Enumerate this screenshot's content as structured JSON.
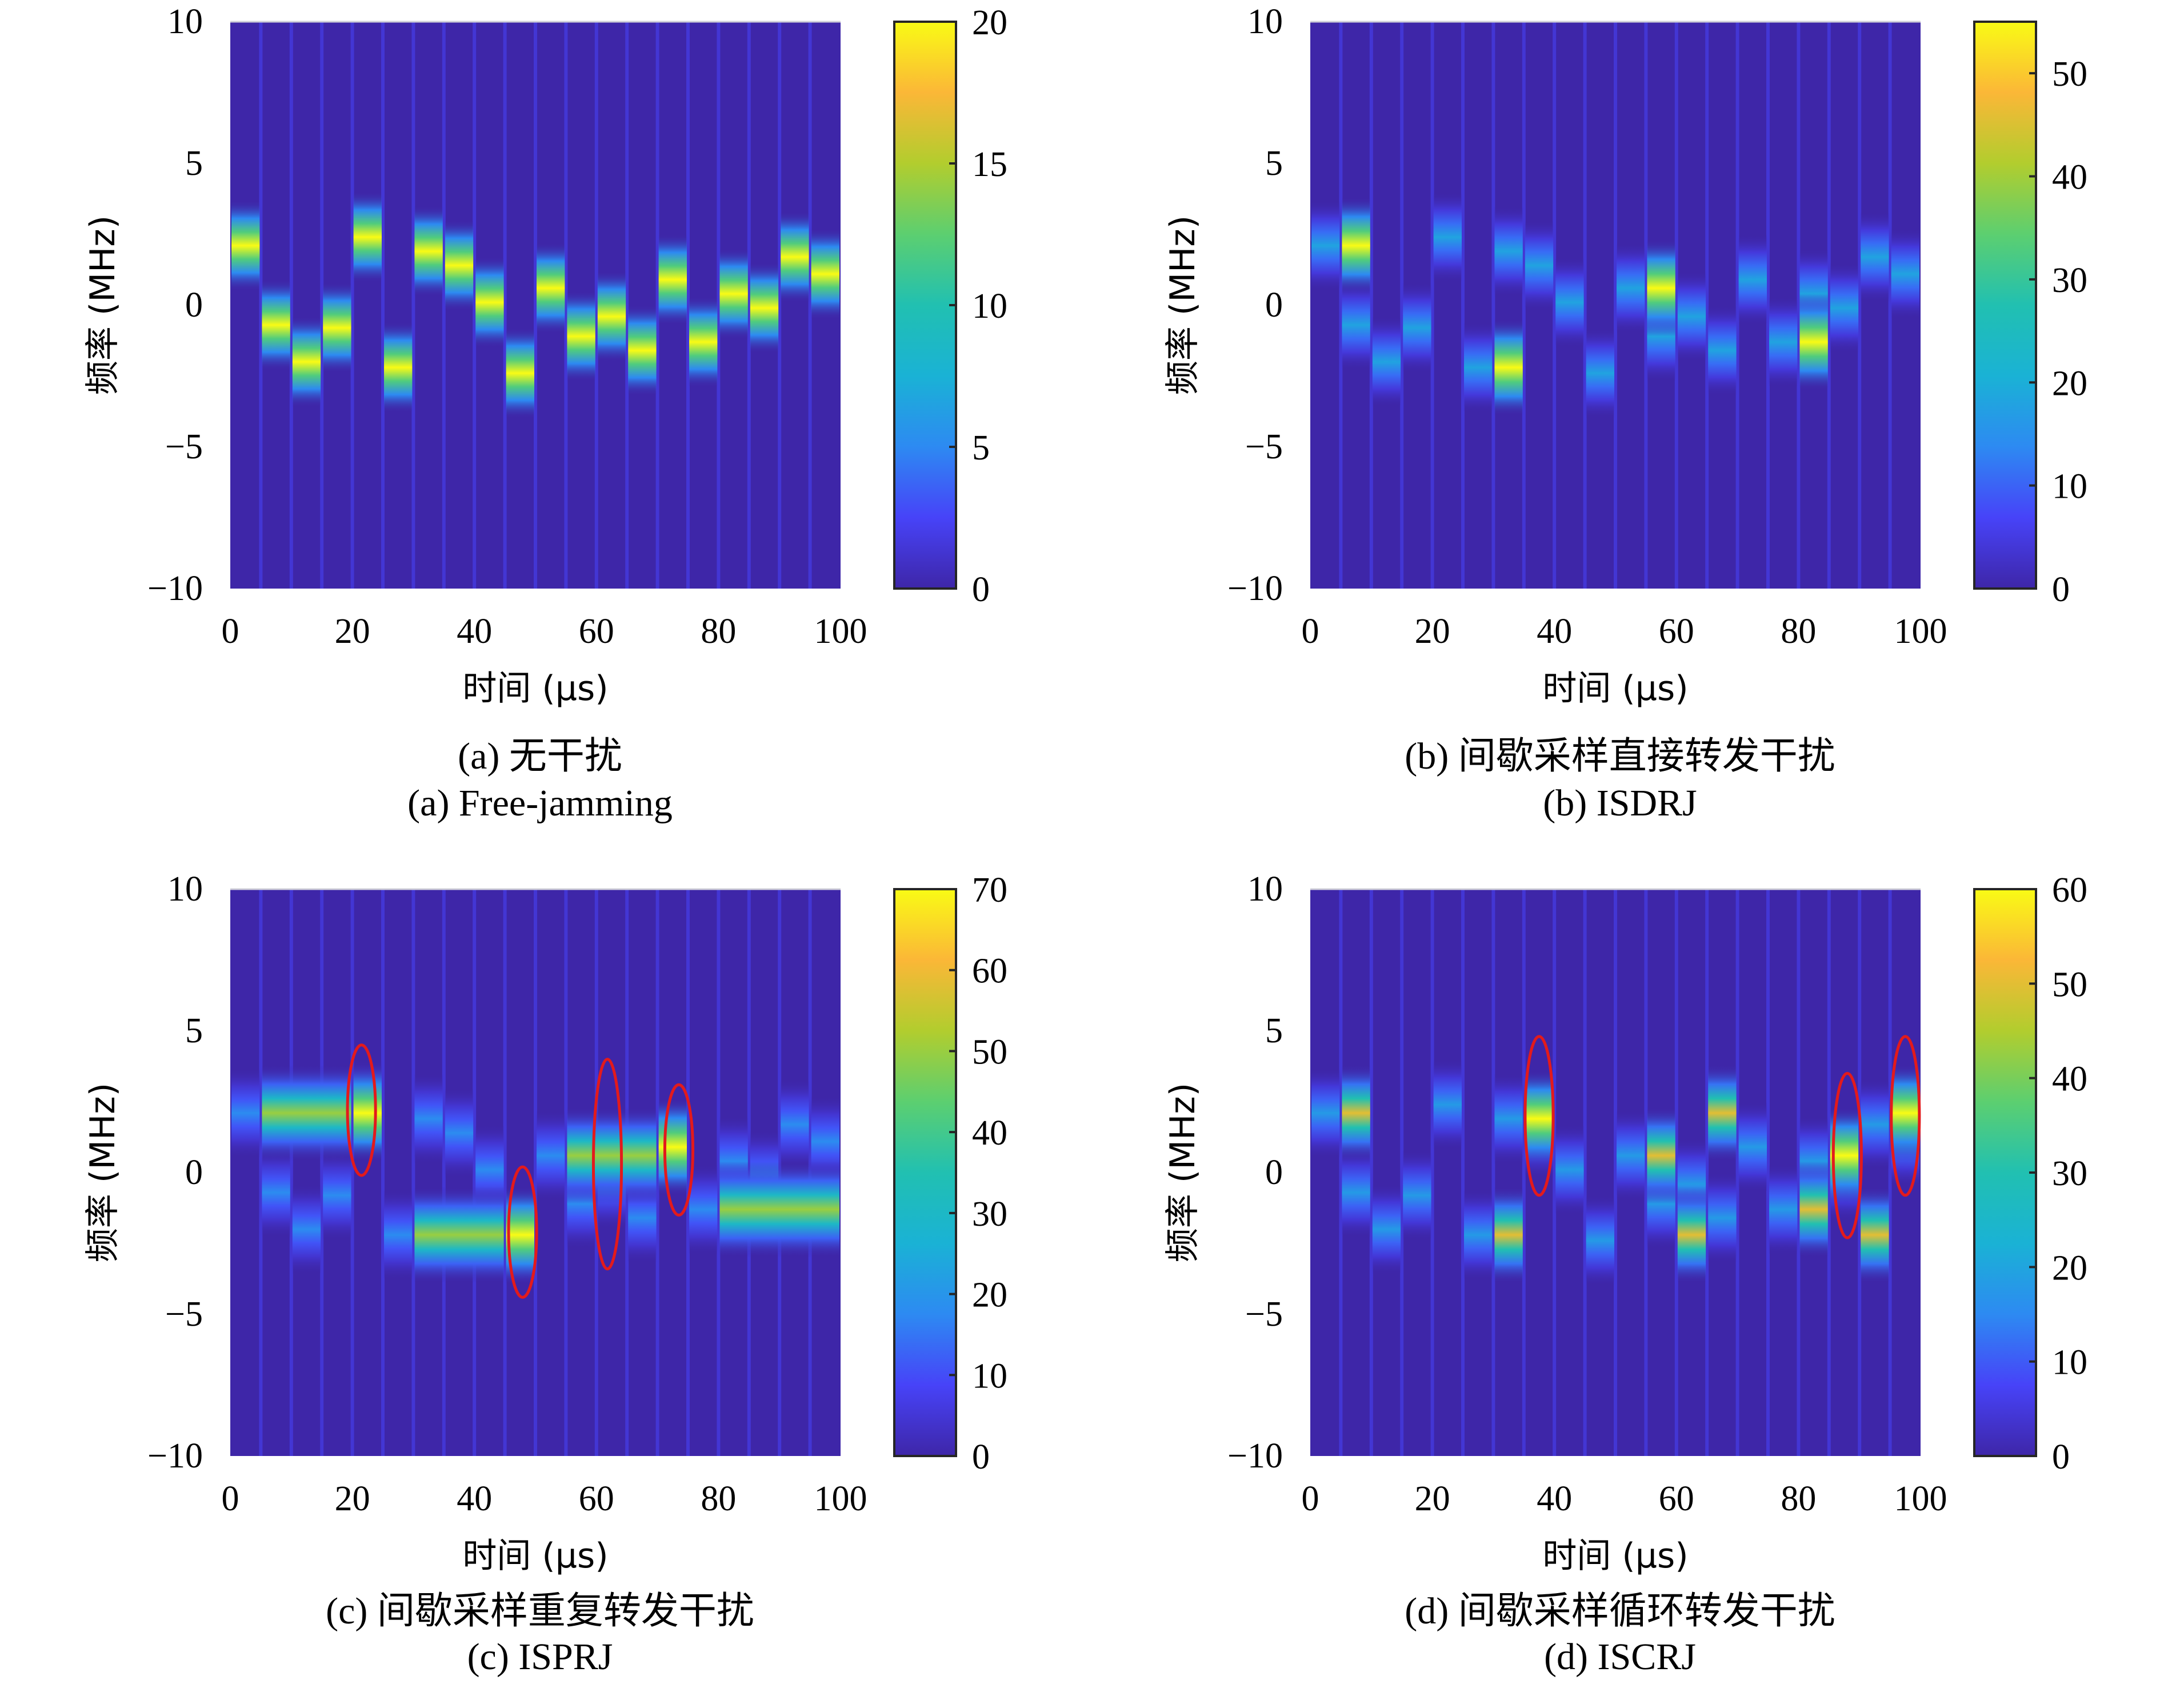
{
  "figure": {
    "colormap": [
      "#3e26a8",
      "#4743f8",
      "#2d8af2",
      "#1ab2d5",
      "#21c0b1",
      "#5ccf70",
      "#b2cd2e",
      "#fbb737",
      "#f9fb15"
    ],
    "annotation_color": "#e31a1c"
  },
  "chart_data": [
    {
      "id": "a",
      "type": "heatmap",
      "caption_cn": "(a) 无干扰",
      "caption_en": "(a) Free-jamming",
      "xlabel": "时间 (μs)",
      "ylabel": "频率 (MHz)",
      "xlim": [
        0,
        100
      ],
      "ylim": [
        -10,
        10
      ],
      "xticks": [
        "0",
        "20",
        "40",
        "60",
        "80",
        "100"
      ],
      "yticks": [
        "10",
        "5",
        "0",
        "−5",
        "−10"
      ],
      "clim": [
        0,
        20
      ],
      "cticks": [
        "20",
        "15",
        "10",
        "5",
        "0"
      ],
      "segment_width_us": 5,
      "segments_freq_mhz": [
        2.1,
        -0.7,
        -2.0,
        -0.8,
        2.4,
        -2.2,
        1.9,
        1.4,
        0.1,
        -2.4,
        0.6,
        -1.1,
        -0.4,
        -1.6,
        0.9,
        -1.3,
        0.4,
        -0.1,
        1.7,
        1.1
      ],
      "segments_intensity": [
        20,
        20,
        20,
        20,
        20,
        20,
        20,
        20,
        20,
        20,
        20,
        20,
        20,
        20,
        20,
        20,
        20,
        20,
        20,
        20
      ],
      "annotations": []
    },
    {
      "id": "b",
      "type": "heatmap",
      "caption_cn": "(b) 间歇采样直接转发干扰",
      "caption_en": "(b) ISDRJ",
      "xlabel": "时间 (μs)",
      "ylabel": "频率 (MHz)",
      "xlim": [
        0,
        100
      ],
      "ylim": [
        -10,
        10
      ],
      "xticks": [
        "0",
        "20",
        "40",
        "60",
        "80",
        "100"
      ],
      "yticks": [
        "10",
        "5",
        "0",
        "−5",
        "−10"
      ],
      "clim": [
        0,
        55
      ],
      "cticks": [
        "50",
        "40",
        "30",
        "20",
        "10",
        "0"
      ],
      "segment_width_us": 5,
      "segments_freq_mhz": [
        2.1,
        -0.7,
        -2.0,
        -0.8,
        2.4,
        -2.2,
        1.9,
        1.4,
        0.1,
        -2.4,
        0.6,
        -1.1,
        -0.4,
        -1.6,
        0.9,
        -1.3,
        0.4,
        -0.1,
        1.7,
        1.1
      ],
      "segments_intensity": [
        18,
        18,
        18,
        18,
        18,
        18,
        18,
        18,
        18,
        18,
        18,
        18,
        18,
        18,
        18,
        18,
        18,
        18,
        18,
        18
      ],
      "jamming_segments": [
        {
          "t_start": 5,
          "t_end": 10,
          "freq_mhz": 2.1,
          "intensity": 55
        },
        {
          "t_start": 30,
          "t_end": 35,
          "freq_mhz": -2.2,
          "intensity": 55
        },
        {
          "t_start": 55,
          "t_end": 60,
          "freq_mhz": 0.6,
          "intensity": 55
        },
        {
          "t_start": 80,
          "t_end": 85,
          "freq_mhz": -1.3,
          "intensity": 55
        }
      ],
      "annotations": []
    },
    {
      "id": "c",
      "type": "heatmap",
      "caption_cn": "(c) 间歇采样重复转发干扰",
      "caption_en": "(c) ISPRJ",
      "xlabel": "时间 (μs)",
      "ylabel": "频率 (MHz)",
      "xlim": [
        0,
        100
      ],
      "ylim": [
        -10,
        10
      ],
      "xticks": [
        "0",
        "20",
        "40",
        "60",
        "80",
        "100"
      ],
      "yticks": [
        "10",
        "5",
        "0",
        "−5",
        "−10"
      ],
      "clim": [
        0,
        70
      ],
      "cticks": [
        "70",
        "60",
        "50",
        "40",
        "30",
        "20",
        "10",
        "0"
      ],
      "segment_width_us": 5,
      "segments_freq_mhz": [
        2.1,
        -0.7,
        -2.0,
        -0.8,
        2.4,
        -2.2,
        1.9,
        1.4,
        0.1,
        -2.4,
        0.6,
        -1.1,
        -0.4,
        -1.6,
        0.9,
        -1.3,
        0.4,
        -0.1,
        1.7,
        1.1
      ],
      "segments_intensity": [
        18,
        18,
        18,
        18,
        18,
        18,
        18,
        18,
        18,
        18,
        18,
        18,
        18,
        18,
        18,
        18,
        18,
        18,
        18,
        18
      ],
      "jamming_segments": [
        {
          "t_start": 5,
          "t_end": 20,
          "freq_mhz": 2.1,
          "intensity": 50
        },
        {
          "t_start": 20,
          "t_end": 25,
          "freq_mhz": 2.1,
          "intensity": 70
        },
        {
          "t_start": 30,
          "t_end": 45,
          "freq_mhz": -2.2,
          "intensity": 50
        },
        {
          "t_start": 45,
          "t_end": 50,
          "freq_mhz": -2.2,
          "intensity": 70
        },
        {
          "t_start": 55,
          "t_end": 70,
          "freq_mhz": 0.6,
          "intensity": 50
        },
        {
          "t_start": 70,
          "t_end": 75,
          "freq_mhz": 0.9,
          "intensity": 70
        },
        {
          "t_start": 80,
          "t_end": 100,
          "freq_mhz": -1.3,
          "intensity": 50
        }
      ],
      "annotations": [
        {
          "t": 21.5,
          "f": 2.2,
          "rt": 2.3,
          "rf": 2.3
        },
        {
          "t": 47.9,
          "f": -2.1,
          "rt": 2.3,
          "rf": 2.3
        },
        {
          "t": 61.8,
          "f": 0.3,
          "rt": 2.3,
          "rf": 3.7
        },
        {
          "t": 73.5,
          "f": 0.8,
          "rt": 2.3,
          "rf": 2.3
        }
      ]
    },
    {
      "id": "d",
      "type": "heatmap",
      "caption_cn": "(d) 间歇采样循环转发干扰",
      "caption_en": "(d) ISCRJ",
      "xlabel": "时间 (μs)",
      "ylabel": "频率 (MHz)",
      "xlim": [
        0,
        100
      ],
      "ylim": [
        -10,
        10
      ],
      "xticks": [
        "0",
        "20",
        "40",
        "60",
        "80",
        "100"
      ],
      "yticks": [
        "10",
        "5",
        "0",
        "−5",
        "−10"
      ],
      "clim": [
        0,
        60
      ],
      "cticks": [
        "60",
        "50",
        "40",
        "30",
        "20",
        "10",
        "0"
      ],
      "segment_width_us": 5,
      "segments_freq_mhz": [
        2.1,
        -0.7,
        -2.0,
        -0.8,
        2.4,
        -2.2,
        1.9,
        1.4,
        0.1,
        -2.4,
        0.6,
        -1.1,
        -0.4,
        -1.6,
        0.9,
        -1.3,
        0.4,
        -0.1,
        1.7,
        1.1
      ],
      "segments_intensity": [
        18,
        18,
        18,
        18,
        18,
        18,
        18,
        18,
        18,
        18,
        18,
        18,
        18,
        18,
        18,
        18,
        18,
        18,
        18,
        18
      ],
      "jamming_segments": [
        {
          "t_start": 5,
          "t_end": 10,
          "freq_mhz": 2.1,
          "intensity": 50
        },
        {
          "t_start": 30,
          "t_end": 35,
          "freq_mhz": -2.2,
          "intensity": 50
        },
        {
          "t_start": 35,
          "t_end": 40,
          "freq_mhz": 1.9,
          "intensity": 60
        },
        {
          "t_start": 55,
          "t_end": 60,
          "freq_mhz": 0.6,
          "intensity": 50
        },
        {
          "t_start": 60,
          "t_end": 65,
          "freq_mhz": -2.2,
          "intensity": 50
        },
        {
          "t_start": 65,
          "t_end": 70,
          "freq_mhz": 2.1,
          "intensity": 50
        },
        {
          "t_start": 80,
          "t_end": 85,
          "freq_mhz": -1.3,
          "intensity": 50
        },
        {
          "t_start": 85,
          "t_end": 90,
          "freq_mhz": 0.6,
          "intensity": 60
        },
        {
          "t_start": 90,
          "t_end": 95,
          "freq_mhz": -2.2,
          "intensity": 50
        },
        {
          "t_start": 95,
          "t_end": 100,
          "freq_mhz": 2.1,
          "intensity": 60
        }
      ],
      "annotations": [
        {
          "t": 37.5,
          "f": 2.0,
          "rt": 2.3,
          "rf": 2.8
        },
        {
          "t": 88.0,
          "f": 0.6,
          "rt": 2.3,
          "rf": 2.9
        },
        {
          "t": 97.5,
          "f": 2.0,
          "rt": 2.3,
          "rf": 2.8
        }
      ]
    }
  ]
}
